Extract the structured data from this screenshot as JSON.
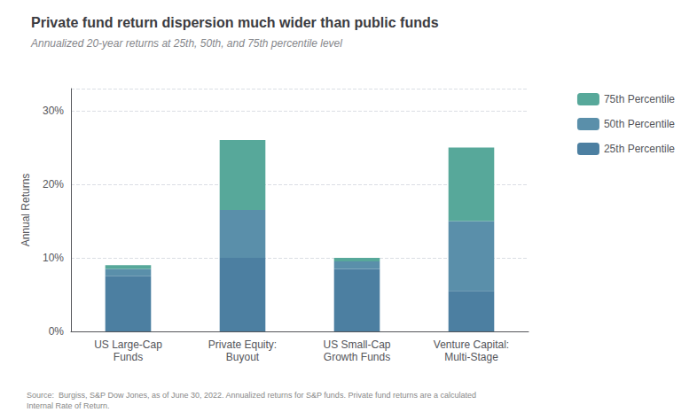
{
  "chart_data": {
    "type": "bar",
    "title": "Private fund return dispersion much wider than public funds",
    "subtitle": "Annualized 20-year returns at 25th, 50th, and 75th percentile level",
    "categories": [
      "US Large-Cap\nFunds",
      "Private Equity:\nBuyout",
      "US Small-Cap\nGrowth Funds",
      "Venture Capital:\nMulti-Stage"
    ],
    "series": [
      {
        "name": "25th Percentile",
        "color": "#4c7fa1",
        "values": [
          7.5,
          10.0,
          8.5,
          5.5
        ]
      },
      {
        "name": "50th Percentile",
        "color": "#5a8faa",
        "values": [
          1.0,
          6.5,
          1.0,
          9.5
        ]
      },
      {
        "name": "75th Percentile",
        "color": "#57a89a",
        "values": [
          0.5,
          9.5,
          0.5,
          10.0
        ]
      }
    ],
    "stacked": true,
    "ylabel": "Annual Returns",
    "ylim": [
      0,
      33
    ],
    "yticks": [
      {
        "value": 0,
        "label": "0%"
      },
      {
        "value": 10,
        "label": "10%"
      },
      {
        "value": 20,
        "label": "20%"
      },
      {
        "value": 30,
        "label": "30%"
      }
    ],
    "grid": true,
    "legend": "upper right",
    "annotations": [
      "Source:  Burgiss, S&P Dow Jones, as of June 30, 2022. Annualized returns for S&P funds. Private fund returns are a calculated\nInternal Rate of Return."
    ]
  }
}
